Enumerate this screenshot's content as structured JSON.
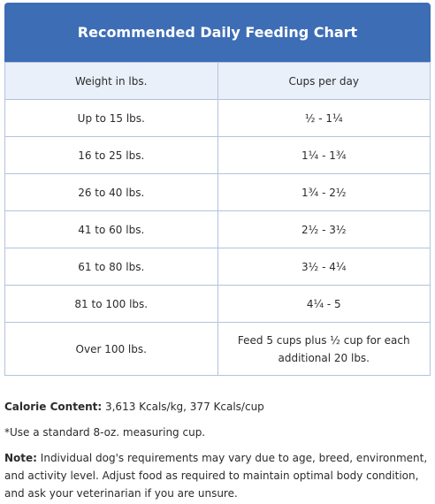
{
  "table": {
    "title": "Recommended Daily Feeding Chart",
    "columns": [
      "Weight in lbs.",
      "Cups per day"
    ],
    "rows": [
      [
        "Up to 15 lbs.",
        "½ - 1¼"
      ],
      [
        "16 to 25 lbs.",
        "1¼ - 1¾"
      ],
      [
        "26 to 40 lbs.",
        "1¾ - 2½"
      ],
      [
        "41 to 60 lbs.",
        "2½ - 3½"
      ],
      [
        "61 to 80 lbs.",
        "3½ - 4¼"
      ],
      [
        "81 to 100 lbs.",
        "4¼ - 5"
      ],
      [
        "Over 100 lbs.",
        "Feed 5 cups plus ½ cup for each additional 20 lbs."
      ]
    ]
  },
  "notes": {
    "calorie": {
      "label": "Calorie Content:",
      "text": "3,613 Kcals/kg, 377 Kcals/cup"
    },
    "cup": "*Use a standard 8-oz. measuring cup.",
    "note": {
      "label": "Note:",
      "text": "Individual dog's requirements may vary due to age, breed, environment, and activity level. Adjust food as required to maintain optimal body condition, and ask your veterinarian if you are unsure."
    }
  }
}
